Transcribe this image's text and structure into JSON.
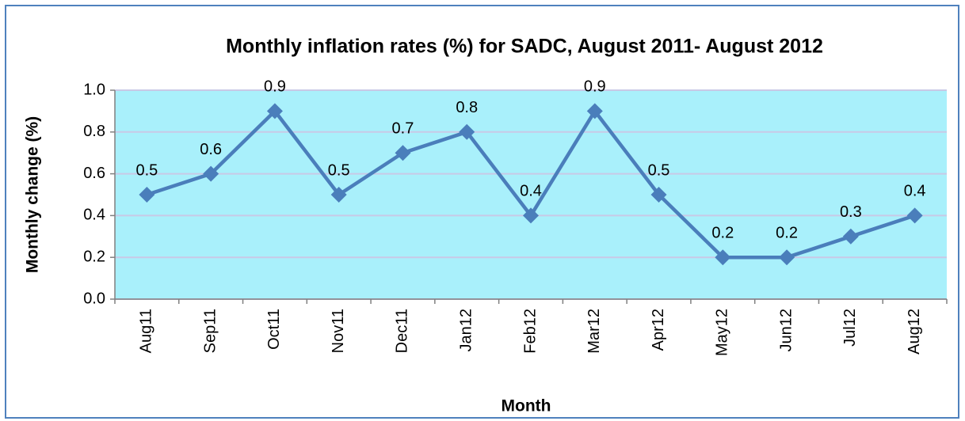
{
  "chart_data": {
    "type": "line",
    "title": "Monthly inflation rates (%) for SADC, August 2011- August 2012",
    "x_label": "Month",
    "y_label": "Monthly change (%)",
    "categories": [
      "Aug11",
      "Sep11",
      "Oct11",
      "Nov11",
      "Dec11",
      "Jan12",
      "Feb12",
      "Mar12",
      "Apr12",
      "May12",
      "Jun12",
      "Jul12",
      "Aug12"
    ],
    "values": [
      0.5,
      0.6,
      0.9,
      0.5,
      0.7,
      0.8,
      0.4,
      0.9,
      0.5,
      0.2,
      0.2,
      0.3,
      0.4
    ],
    "color": "#4a7ebb",
    "ylim": [
      0,
      1
    ],
    "yticks": [
      {
        "value": 0,
        "label": "0.0"
      },
      0.2,
      0.4,
      0.6,
      0.8,
      {
        "value": 1,
        "label": "1.0"
      }
    ],
    "grid": true
  }
}
